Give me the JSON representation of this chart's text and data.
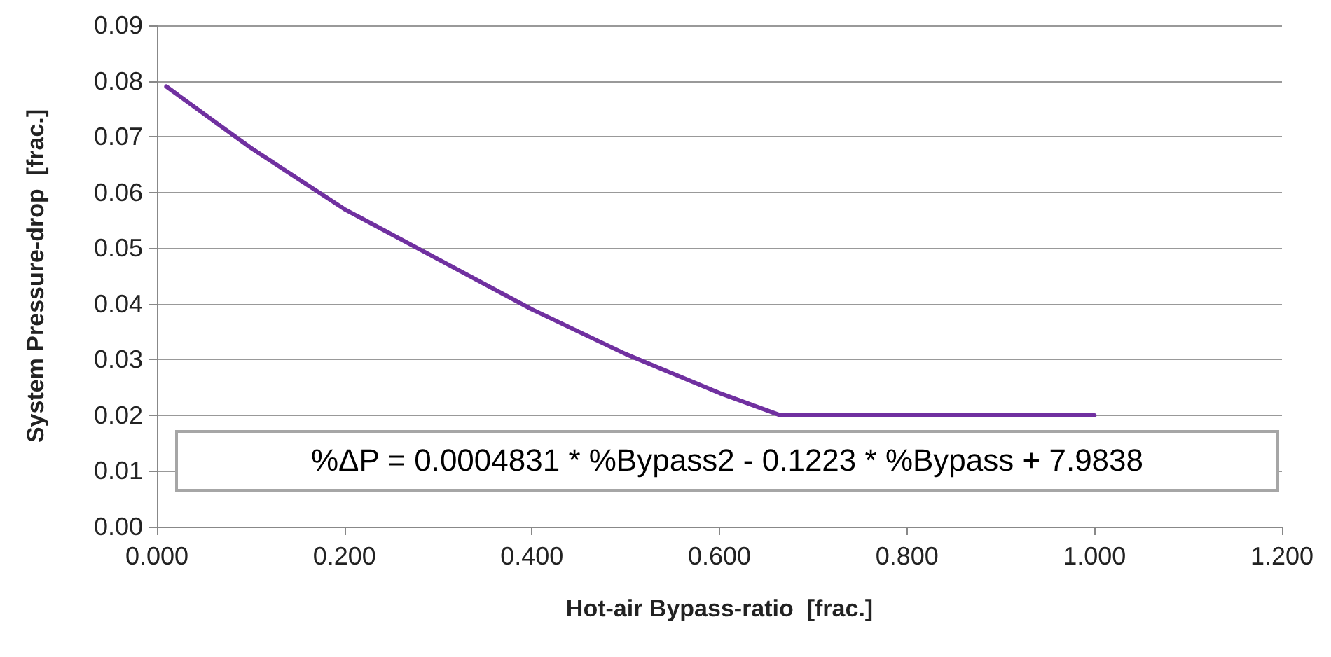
{
  "chart_data": {
    "type": "line",
    "xlabel": "Hot-air Bypass-ratio  [frac.]",
    "ylabel": "System Pressure-drop  [frac.]",
    "x": [
      0.01,
      0.1,
      0.2,
      0.3,
      0.4,
      0.5,
      0.6,
      0.665,
      1.0
    ],
    "series": [
      {
        "color": "#7030a0",
        "values": [
          0.079,
          0.068,
          0.057,
          0.048,
          0.039,
          0.031,
          0.024,
          0.02,
          0.02
        ]
      }
    ],
    "xlim": [
      0,
      1.2
    ],
    "xticks": [
      {
        "value": 0,
        "label": "0.000"
      },
      {
        "value": 0.2,
        "label": "0.200"
      },
      {
        "value": 0.4,
        "label": "0.400"
      },
      {
        "value": 0.6,
        "label": "0.600"
      },
      {
        "value": 0.8,
        "label": "0.800"
      },
      {
        "value": 1.0,
        "label": "1.000"
      },
      {
        "value": 1.2,
        "label": "1.200"
      }
    ],
    "ylim": [
      0,
      0.09
    ],
    "yticks": [
      {
        "value": 0,
        "label": "0.00"
      },
      {
        "value": 0.01,
        "label": "0.01"
      },
      {
        "value": 0.02,
        "label": "0.02"
      },
      {
        "value": 0.03,
        "label": "0.03"
      },
      {
        "value": 0.04,
        "label": "0.04"
      },
      {
        "value": 0.05,
        "label": "0.05"
      },
      {
        "value": 0.06,
        "label": "0.06"
      },
      {
        "value": 0.07,
        "label": "0.07"
      },
      {
        "value": 0.08,
        "label": "0.08"
      },
      {
        "value": 0.09,
        "label": "0.09"
      }
    ],
    "grid": "y",
    "marker": "none",
    "line_style": "solid",
    "annotations": [
      "%ΔP = 0.0004831 * %Bypass2 - 0.1223 * %Bypass + 7.9838"
    ]
  }
}
